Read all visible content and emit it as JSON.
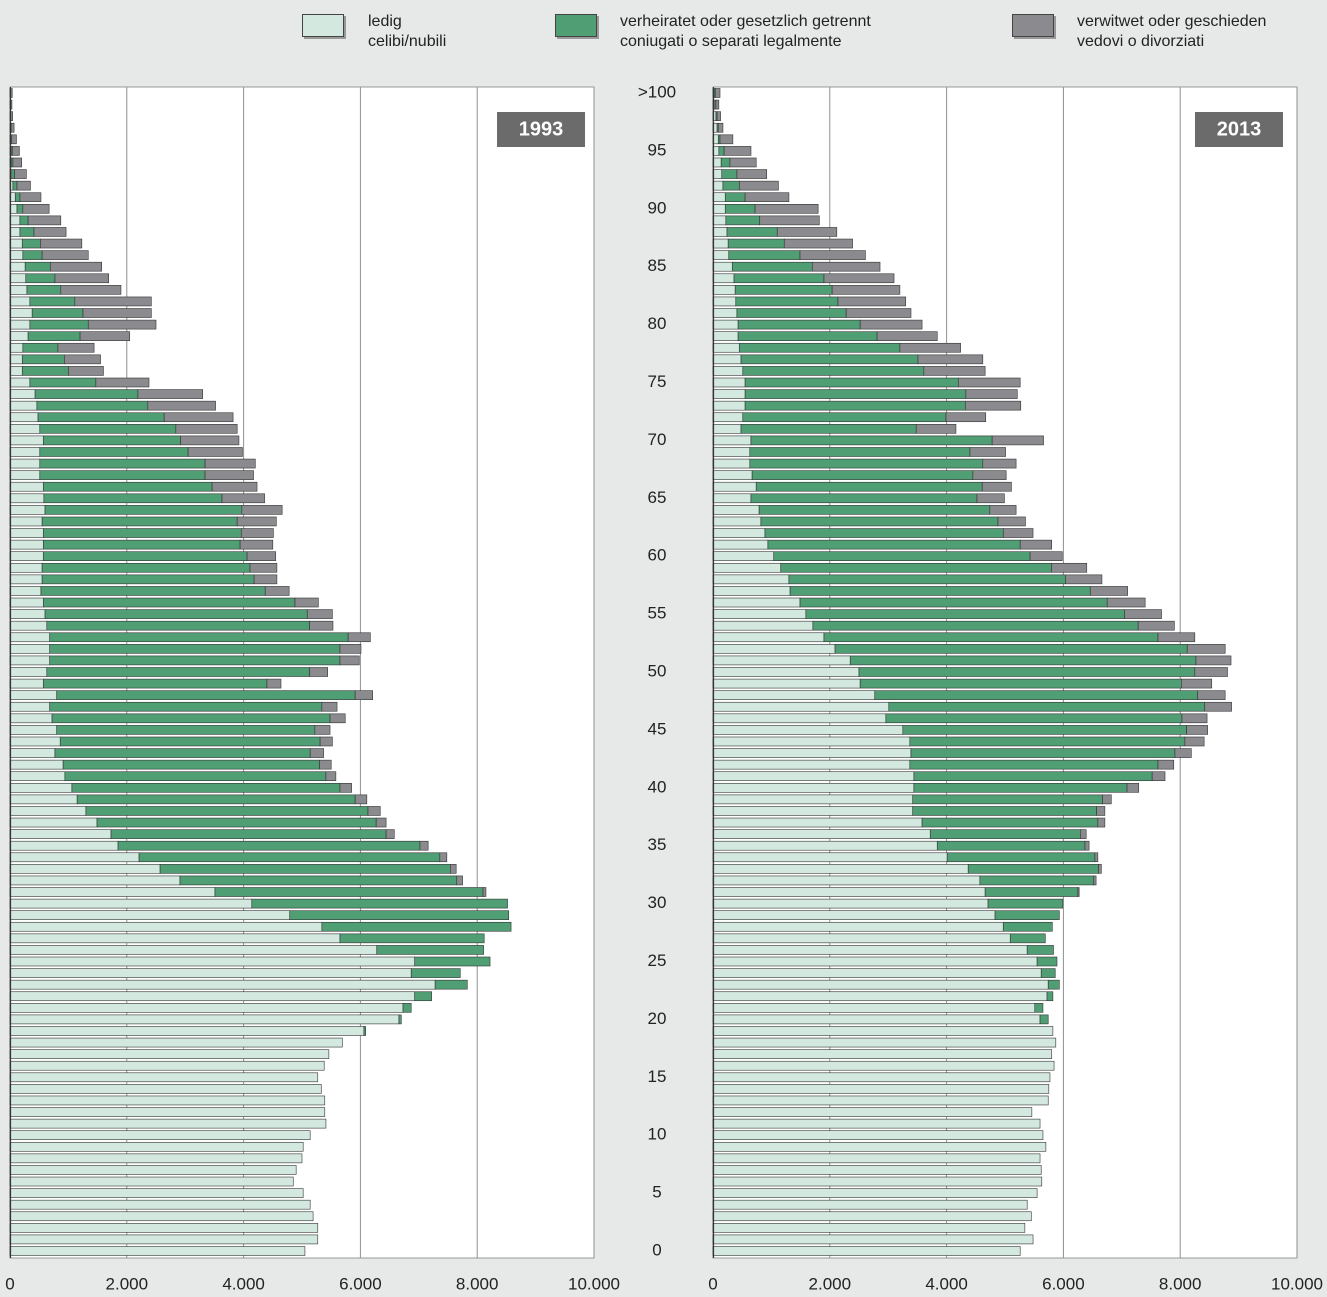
{
  "chart_data": [
    {
      "type": "bar",
      "orientation": "horizontal",
      "stacked": true,
      "annotation": "1993",
      "categories": [
        "0",
        null,
        null,
        null,
        null,
        "5",
        null,
        null,
        null,
        null,
        "10",
        null,
        null,
        null,
        null,
        "15",
        null,
        null,
        null,
        null,
        "20",
        null,
        null,
        null,
        null,
        "25",
        null,
        null,
        null,
        null,
        "30",
        null,
        null,
        null,
        null,
        "35",
        null,
        null,
        null,
        null,
        "40",
        null,
        null,
        null,
        null,
        "45",
        null,
        null,
        null,
        null,
        "50",
        null,
        null,
        null,
        null,
        "55",
        null,
        null,
        null,
        null,
        "60",
        null,
        null,
        null,
        null,
        "65",
        null,
        null,
        null,
        null,
        "70",
        null,
        null,
        null,
        null,
        "75",
        null,
        null,
        null,
        null,
        "80",
        null,
        null,
        null,
        null,
        "85",
        null,
        null,
        null,
        null,
        "90",
        null,
        null,
        null,
        null,
        "95",
        null,
        null,
        null,
        null,
        ">100"
      ],
      "xlim": [
        0,
        10000
      ],
      "xticks": [
        0,
        {
          "value": 2000,
          "label": "2.000"
        },
        {
          "value": 4000,
          "label": "4.000"
        },
        {
          "value": 6000,
          "label": "6.000"
        },
        {
          "value": 8000,
          "label": "8.000"
        },
        {
          "value": 10000,
          "label": "10.000"
        }
      ],
      "grid": true,
      "series": [
        {
          "name": "ledig\ncelibi/nubili",
          "color": "#d3e8df",
          "values": [
            5050,
            5270,
            5270,
            5190,
            5140,
            5020,
            4850,
            4900,
            5000,
            5020,
            5140,
            5410,
            5390,
            5390,
            5330,
            5270,
            5380,
            5460,
            5690,
            6060,
            6660,
            6730,
            6930,
            7280,
            6870,
            6930,
            6280,
            5650,
            5340,
            4790,
            4140,
            3510,
            2910,
            2570,
            2210,
            1850,
            1730,
            1490,
            1300,
            1150,
            1060,
            940,
            910,
            770,
            860,
            800,
            720,
            680,
            800,
            570,
            630,
            680,
            680,
            680,
            630,
            600,
            570,
            530,
            550,
            550,
            570,
            570,
            570,
            550,
            600,
            580,
            570,
            510,
            510,
            510,
            570,
            510,
            480,
            460,
            430,
            340,
            210,
            210,
            220,
            310,
            340,
            380,
            340,
            290,
            270,
            260,
            220,
            210,
            170,
            170,
            120,
            90,
            50,
            30,
            20,
            20,
            10,
            10,
            5,
            5,
            5
          ]
        },
        {
          "name": "verheiratet oder gesetzlich getrennt\nconiugati o separati legalmente",
          "color": "#4f9e74",
          "values": [
            0,
            0,
            0,
            0,
            0,
            0,
            0,
            0,
            0,
            0,
            0,
            0,
            0,
            0,
            0,
            0,
            0,
            0,
            0,
            30,
            40,
            140,
            290,
            550,
            840,
            1290,
            1830,
            2470,
            3240,
            3750,
            4380,
            4590,
            4740,
            4970,
            5150,
            5170,
            4710,
            4780,
            4830,
            4760,
            4590,
            4470,
            4390,
            4370,
            4450,
            4420,
            4760,
            4660,
            5110,
            3830,
            4500,
            4970,
            4970,
            5110,
            4500,
            4490,
            4310,
            3840,
            3630,
            3560,
            3490,
            3370,
            3390,
            3340,
            3370,
            3050,
            2890,
            2830,
            2830,
            2540,
            2350,
            2330,
            2160,
            1900,
            1760,
            1130,
            790,
            720,
            600,
            890,
            1000,
            870,
            770,
            580,
            500,
            430,
            330,
            310,
            240,
            140,
            100,
            80,
            70,
            50,
            30,
            20,
            20,
            10,
            5,
            3,
            3
          ]
        },
        {
          "name": "verwitwet oder geschieden\nvedovi o divorziati",
          "color": "#8b8b8f",
          "values": [
            0,
            0,
            0,
            0,
            0,
            0,
            0,
            0,
            0,
            0,
            0,
            0,
            0,
            0,
            0,
            0,
            0,
            0,
            0,
            0,
            0,
            0,
            0,
            0,
            0,
            0,
            0,
            0,
            0,
            0,
            0,
            50,
            100,
            100,
            120,
            140,
            140,
            170,
            210,
            200,
            200,
            170,
            200,
            230,
            210,
            260,
            260,
            260,
            300,
            240,
            310,
            330,
            360,
            380,
            400,
            430,
            400,
            410,
            390,
            460,
            490,
            560,
            550,
            670,
            690,
            730,
            770,
            830,
            860,
            930,
            1000,
            1050,
            1180,
            1160,
            1110,
            910,
            600,
            620,
            620,
            850,
            1160,
            1170,
            1310,
            1030,
            920,
            880,
            790,
            710,
            550,
            560,
            450,
            360,
            230,
            200,
            150,
            120,
            80,
            50,
            35,
            25,
            30
          ]
        }
      ]
    },
    {
      "type": "bar",
      "orientation": "horizontal",
      "stacked": true,
      "annotation": "2013",
      "xlim": [
        0,
        10000
      ],
      "xticks": [
        0,
        {
          "value": 2000,
          "label": "2.000"
        },
        {
          "value": 4000,
          "label": "4.000"
        },
        {
          "value": 6000,
          "label": "6.000"
        },
        {
          "value": 8000,
          "label": "8.000"
        },
        {
          "value": 10000,
          "label": "10.000"
        }
      ],
      "grid": true,
      "series": [
        {
          "values": [
            5260,
            5480,
            5340,
            5450,
            5380,
            5550,
            5630,
            5620,
            5600,
            5700,
            5650,
            5600,
            5460,
            5740,
            5750,
            5770,
            5840,
            5800,
            5870,
            5820,
            5600,
            5510,
            5720,
            5740,
            5620,
            5550,
            5380,
            5090,
            4970,
            4830,
            4710,
            4660,
            4570,
            4370,
            4010,
            3840,
            3720,
            3580,
            3420,
            3420,
            3440,
            3440,
            3370,
            3390,
            3370,
            3250,
            2960,
            3010,
            2770,
            2520,
            2500,
            2350,
            2090,
            1900,
            1710,
            1590,
            1490,
            1320,
            1300,
            1160,
            1040,
            940,
            890,
            820,
            790,
            650,
            740,
            670,
            630,
            630,
            650,
            480,
            510,
            550,
            550,
            550,
            510,
            480,
            450,
            430,
            430,
            410,
            390,
            380,
            360,
            330,
            270,
            260,
            240,
            220,
            210,
            210,
            170,
            150,
            140,
            100,
            90,
            70,
            50,
            30,
            20
          ]
        },
        {
          "values": [
            0,
            0,
            0,
            0,
            0,
            0,
            0,
            0,
            0,
            0,
            0,
            0,
            0,
            0,
            0,
            0,
            0,
            0,
            0,
            0,
            140,
            140,
            100,
            190,
            240,
            340,
            450,
            600,
            840,
            1100,
            1280,
            1590,
            1950,
            2230,
            2530,
            2530,
            2570,
            3010,
            3150,
            3250,
            3650,
            4080,
            4250,
            4520,
            4710,
            4860,
            5070,
            5410,
            5530,
            5500,
            5750,
            5920,
            6030,
            5720,
            5570,
            5460,
            5260,
            5140,
            4740,
            4640,
            4390,
            4320,
            4080,
            4060,
            3950,
            3870,
            3870,
            3780,
            3990,
            3770,
            4130,
            3000,
            3480,
            3770,
            3780,
            3650,
            3100,
            3030,
            2750,
            2380,
            2090,
            1870,
            1750,
            1660,
            1540,
            1370,
            1220,
            960,
            860,
            580,
            510,
            340,
            280,
            260,
            150,
            90,
            30,
            20,
            20,
            20,
            20
          ]
        },
        {
          "values": [
            0,
            0,
            0,
            0,
            0,
            0,
            0,
            0,
            0,
            0,
            0,
            0,
            0,
            0,
            0,
            0,
            0,
            0,
            0,
            0,
            0,
            0,
            0,
            0,
            0,
            0,
            0,
            0,
            0,
            0,
            0,
            20,
            40,
            50,
            50,
            70,
            100,
            120,
            140,
            150,
            200,
            220,
            270,
            280,
            330,
            360,
            430,
            460,
            470,
            520,
            560,
            600,
            650,
            630,
            620,
            630,
            650,
            640,
            620,
            600,
            550,
            540,
            510,
            470,
            450,
            470,
            500,
            570,
            570,
            610,
            880,
            680,
            680,
            950,
            880,
            1060,
            1050,
            1110,
            1040,
            1030,
            1060,
            1110,
            1160,
            1160,
            1200,
            1160,
            1120,
            1170,
            1020,
            1020,
            1080,
            750,
            670,
            510,
            450,
            460,
            220,
            80,
            60,
            50,
            80
          ]
        }
      ]
    }
  ]
}
